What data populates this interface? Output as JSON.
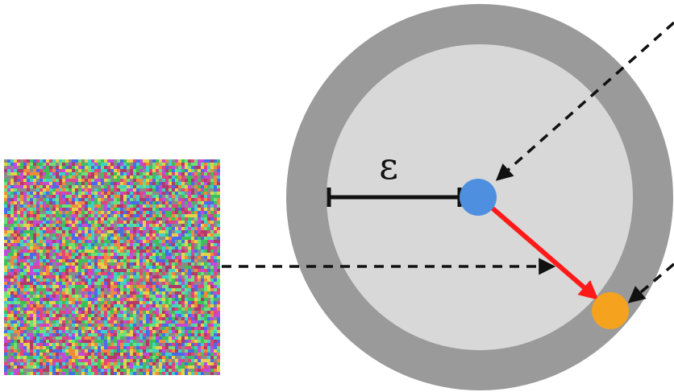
{
  "diagram": {
    "epsilon_label": "ε",
    "colors": {
      "outer_ring": "#9a9a9a",
      "inner_disk": "#d8d8d8",
      "center_point": "#4f8fe0",
      "perturbed_point": "#f5a21e",
      "perturbation_arrow": "#ff1a1a",
      "radius_bar": "#111111",
      "dashed_arrows": "#111111"
    },
    "noise_palette": [
      "#e0457b",
      "#3fbf5a",
      "#4a6be8",
      "#e6d24a",
      "#c14ad8",
      "#3fd0c8",
      "#8a8a8a",
      "#f08a3c",
      "#6ee07a",
      "#b03a6a"
    ]
  }
}
